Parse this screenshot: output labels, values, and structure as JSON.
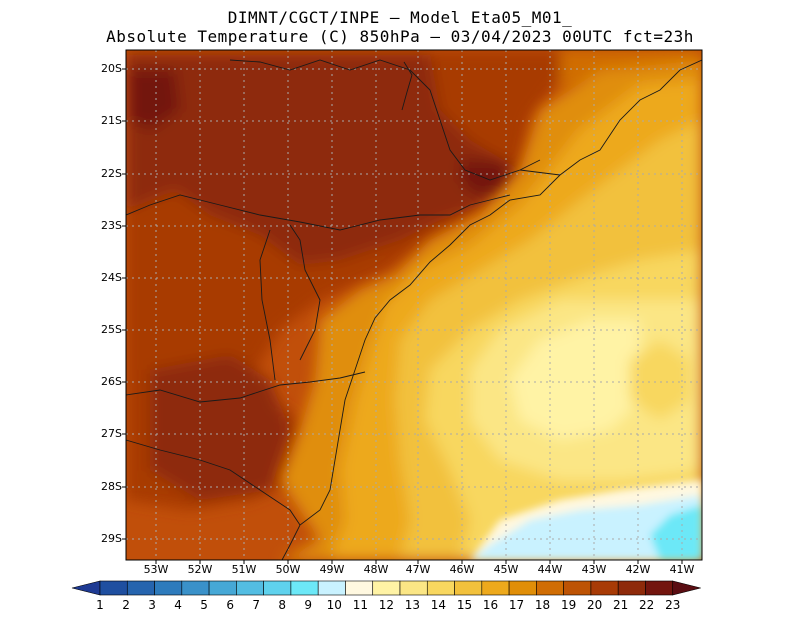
{
  "header": {
    "line1": "DIMNT/CGCT/INPE –  Model Eta05_M01_",
    "line2": "Absolute Temperature (C) 850hPa –  03/04/2023 00UTC fct=23h"
  },
  "map": {
    "lat_labels": [
      "20S",
      "21S",
      "22S",
      "23S",
      "24S",
      "25S",
      "26S",
      "27S",
      "28S",
      "29S"
    ],
    "lon_labels": [
      "53W",
      "52W",
      "51W",
      "50W",
      "49W",
      "48W",
      "47W",
      "46W",
      "45W",
      "44W",
      "43W",
      "42W",
      "41W"
    ],
    "temperature_zones": [
      {
        "name": "interior-sao-paulo-core",
        "value": 21
      },
      {
        "name": "parana-west-core",
        "value": 20
      },
      {
        "name": "coast-sc-band",
        "value": 17
      },
      {
        "name": "offshore-center",
        "value": 13
      },
      {
        "name": "southeast-cold-pocket",
        "value": 9
      }
    ]
  },
  "colorbar": {
    "labels": [
      "1",
      "2",
      "3",
      "4",
      "5",
      "6",
      "7",
      "8",
      "9",
      "10",
      "11",
      "12",
      "13",
      "14",
      "15",
      "16",
      "17",
      "18",
      "19",
      "20",
      "21",
      "22",
      "23"
    ],
    "colors": [
      "#1e3a93",
      "#1f4fa0",
      "#2664ae",
      "#2e7bbc",
      "#3a91c9",
      "#46a8d6",
      "#53bde2",
      "#5fd2ed",
      "#6ce8f7",
      "#c9f2ff",
      "#fff8e0",
      "#fff3a5",
      "#fbe685",
      "#f8d75f",
      "#f2c13c",
      "#eda91c",
      "#e08e08",
      "#d06d04",
      "#bd5304",
      "#a83b06",
      "#8e2a0a",
      "#73150e",
      "#5a0d12"
    ]
  }
}
